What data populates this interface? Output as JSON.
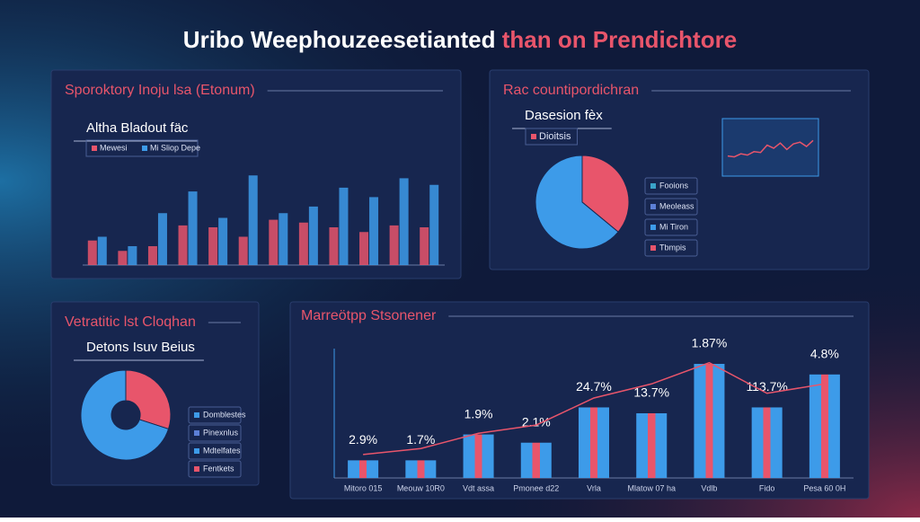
{
  "title": {
    "main": "Uribo Weephouzeesetianted",
    "accent": "than on Prendichtore"
  },
  "chart_data": [
    {
      "type": "bar",
      "title": "Sporoktory Inoju lsa (Etonum)",
      "subtitle": "Altha Bladout fäc",
      "categories": [
        null,
        null,
        null,
        null,
        null,
        null,
        null,
        null,
        null,
        null,
        null,
        null
      ],
      "series": [
        {
          "name": "Mewesi",
          "color": "#e8556b",
          "values": [
            26,
            15,
            20,
            42,
            40,
            30,
            48,
            45,
            40,
            35,
            42,
            40
          ]
        },
        {
          "name": "Mi Sliop Depe",
          "color": "#3d9be9",
          "values": [
            30,
            20,
            55,
            78,
            50,
            95,
            55,
            62,
            82,
            72,
            92,
            85
          ]
        }
      ],
      "ylim": [
        0,
        100
      ]
    },
    {
      "type": "pie",
      "title": "Rac countipordichran",
      "subtitle": "Dasesion fèx",
      "tag": "Dioitsis",
      "categories": [
        null,
        null
      ],
      "values": [
        36,
        64
      ],
      "colors": [
        "#e8556b",
        "#3d9be9"
      ],
      "legend": [
        "Fooions",
        "Meoleass",
        "Mi Tiron",
        "Tbmpis"
      ],
      "legend_colors": [
        "#3aa3c9",
        "#5c7fd6",
        "#3d9be9",
        "#e8556b"
      ]
    },
    {
      "type": "line",
      "values": [
        30,
        28,
        35,
        32,
        40,
        38,
        55,
        48,
        60,
        45,
        58,
        62,
        52,
        66
      ],
      "color": "#e8556b",
      "ylim": [
        0,
        100
      ]
    },
    {
      "type": "donut",
      "title": "Vetratitic lst Cloqhan",
      "subtitle": "Detons Isuv Beius",
      "categories": [
        null,
        null
      ],
      "values": [
        30,
        70
      ],
      "colors": [
        "#e8556b",
        "#3d9be9"
      ],
      "legend": [
        "Domblestes",
        "Pinexnlus",
        "Mdtelfates",
        "Fentkets"
      ],
      "legend_colors": [
        "#3d9be9",
        "#5c7fd6",
        "#3d9be9",
        "#e8556b"
      ]
    },
    {
      "type": "combo",
      "title": "Marreötpp Stsonener",
      "categories": [
        "Mitoro 015",
        "Meouw 10R0",
        "Vdt assa",
        "Pmonee d22",
        "Vrla",
        "Mlatow 07 ha",
        "Vdlb",
        "Fido",
        "Pesa 60 0H"
      ],
      "values": [
        15,
        15,
        37,
        30,
        60,
        55,
        97,
        60,
        88
      ],
      "color": "#3d9be9",
      "stripe": "#e8556b",
      "annotations": [
        "2.9%",
        "1.7%",
        "1.9%",
        "2.1%",
        "24.7%",
        "13.7%",
        "1.87%",
        "113.7%",
        "4.8%"
      ],
      "line": [
        20,
        25,
        38,
        45,
        68,
        80,
        98,
        72,
        80
      ],
      "line_color": "#e8556b",
      "ylim": [
        0,
        110
      ]
    }
  ]
}
